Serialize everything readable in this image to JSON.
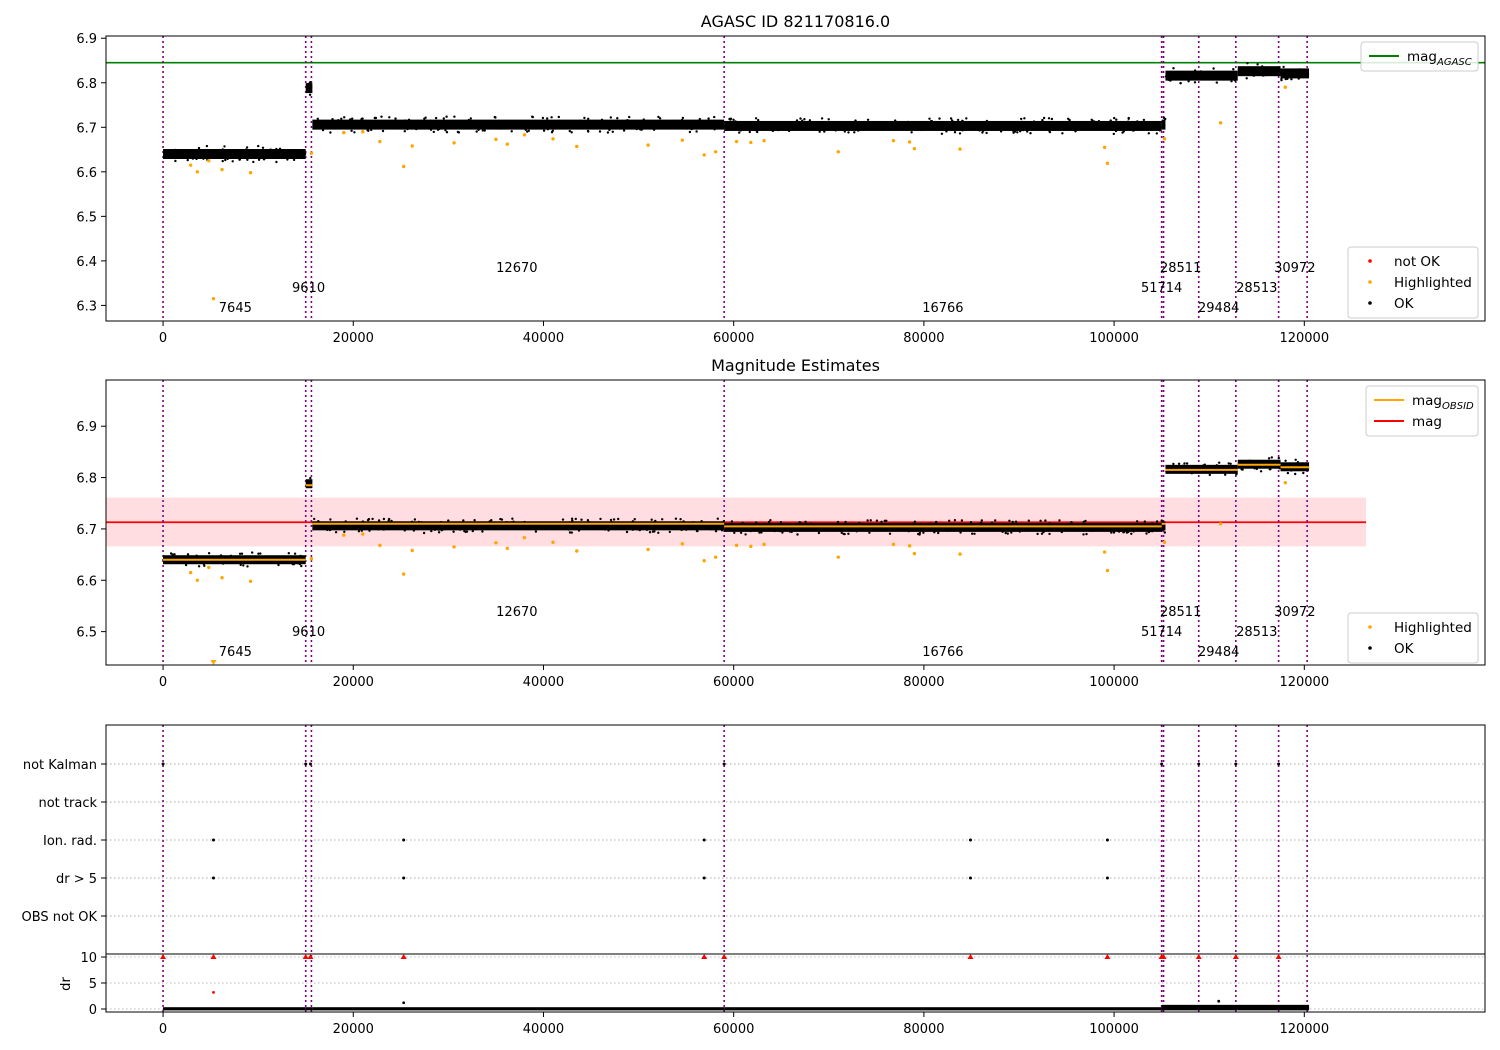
{
  "chart_data": [
    {
      "type": "scatter",
      "title": "AGASC ID 821170816.0",
      "xlim": [
        -6000,
        139000
      ],
      "ylim": [
        6.265,
        6.905
      ],
      "x_ticks": [
        0,
        20000,
        40000,
        60000,
        80000,
        100000,
        120000
      ],
      "y_ticks": [
        6.3,
        6.4,
        6.5,
        6.6,
        6.7,
        6.8,
        6.9
      ],
      "y_tick_labels": [
        "6.3",
        "6.4",
        "6.5",
        "6.6",
        "6.7",
        "6.8",
        "6.9"
      ],
      "grid": false,
      "reference_line": {
        "name": "mag_AGASC",
        "y": 6.845,
        "color": "#008000"
      },
      "legends": [
        {
          "placement": "upper right",
          "entries": [
            {
              "label": "mag",
              "sub": "AGASC",
              "kind": "line",
              "color": "#008000"
            }
          ]
        },
        {
          "placement": "lower right",
          "entries": [
            {
              "label": "not OK",
              "kind": "dot",
              "color": "#ff0000"
            },
            {
              "label": "Highlighted",
              "kind": "dot",
              "color": "#ffa500"
            },
            {
              "label": "OK",
              "kind": "dot",
              "color": "#000000"
            }
          ]
        }
      ]
    },
    {
      "type": "scatter",
      "title": "Magnitude Estimates",
      "xlim": [
        -6000,
        139000
      ],
      "ylim": [
        6.435,
        6.99
      ],
      "x_ticks": [
        0,
        20000,
        40000,
        60000,
        80000,
        100000,
        120000
      ],
      "y_ticks": [
        6.5,
        6.6,
        6.7,
        6.8,
        6.9
      ],
      "y_tick_labels": [
        "6.5",
        "6.6",
        "6.7",
        "6.8",
        "6.9"
      ],
      "grid": false,
      "mag_line": {
        "name": "mag",
        "y": 6.713,
        "color": "#ff0000",
        "x_end": 126500
      },
      "mag_band": {
        "y_low": 6.666,
        "y_high": 6.761,
        "color": "#ff000022"
      },
      "mag_obsid_segments": [
        {
          "x0": 0,
          "x1": 15000,
          "y": 6.64
        },
        {
          "x0": 15000,
          "x1": 15700,
          "y": 6.785
        },
        {
          "x0": 15700,
          "x1": 59000,
          "y": 6.71
        },
        {
          "x0": 59000,
          "x1": 105000,
          "y": 6.705
        },
        {
          "x0": 105000,
          "x1": 105400,
          "y": 6.71
        },
        {
          "x0": 105400,
          "x1": 113000,
          "y": 6.815
        },
        {
          "x0": 113000,
          "x1": 117500,
          "y": 6.825
        },
        {
          "x0": 117500,
          "x1": 120500,
          "y": 6.82
        }
      ],
      "legends": [
        {
          "placement": "upper right",
          "entries": [
            {
              "label": "mag",
              "sub": "OBSID",
              "kind": "line",
              "color": "#ffa500"
            },
            {
              "label": "mag",
              "kind": "line",
              "color": "#ff0000"
            }
          ]
        },
        {
          "placement": "lower right",
          "entries": [
            {
              "label": "Highlighted",
              "kind": "dot",
              "color": "#ffa500"
            },
            {
              "label": "OK",
              "kind": "dot",
              "color": "#000000"
            }
          ]
        }
      ]
    },
    {
      "type": "scatter",
      "title": "",
      "xlim": [
        -6000,
        139000
      ],
      "categories": [
        "not Kalman",
        "not track",
        "Ion. rad.",
        "dr > 5",
        "OBS not OK"
      ],
      "category_events": [
        {
          "category": "not Kalman",
          "x": [
            0,
            15000,
            15500,
            59000,
            105000,
            108900,
            112800,
            117300
          ]
        },
        {
          "category": "not track",
          "x": []
        },
        {
          "category": "Ion. rad.",
          "x": [
            5300,
            25300,
            56900,
            84900,
            99300
          ]
        },
        {
          "category": "dr > 5",
          "x": [
            5300,
            25300,
            56900,
            84900,
            99300
          ]
        },
        {
          "category": "OBS not OK",
          "x": []
        }
      ],
      "dr_panel": {
        "ylabel": "dr",
        "y_ticks": [
          0,
          5,
          10
        ],
        "ylim": [
          -0.5,
          10.5
        ],
        "clipped_points": {
          "y": 10,
          "color": "#ff0000",
          "x": [
            0,
            5300,
            15000,
            15500,
            25300,
            56900,
            59000,
            84900,
            99300,
            105000,
            105200,
            108900,
            112800,
            117300
          ]
        },
        "other_points": [
          {
            "x": 5300,
            "y": 3.2,
            "color": "#ff0000"
          },
          {
            "x": 25300,
            "y": 1.2,
            "color": "#000000"
          },
          {
            "x": 111000,
            "y": 1.5,
            "color": "#000000"
          }
        ]
      },
      "x_ticks": [
        0,
        20000,
        40000,
        60000,
        80000,
        100000,
        120000
      ]
    }
  ],
  "obsid_markers": [
    {
      "x": 0,
      "label": "7645",
      "label_x": 7600,
      "tier": 3
    },
    {
      "x": 15000,
      "label": "9610",
      "label_x": 15300,
      "tier": 2
    },
    {
      "x": 15600,
      "label": "12670",
      "label_x": 37200,
      "tier": 1
    },
    {
      "x": 59000,
      "label": "16766",
      "label_x": 82000,
      "tier": 3
    },
    {
      "x": 105000,
      "label": "51714",
      "label_x": 105000,
      "tier": 2
    },
    {
      "x": 105200,
      "label": "28511",
      "label_x": 107000,
      "tier": 1
    },
    {
      "x": 108900,
      "label": "29484",
      "label_x": 111000,
      "tier": 3
    },
    {
      "x": 112800,
      "label": "28513",
      "label_x": 115000,
      "tier": 2
    },
    {
      "x": 117300,
      "label": "30972",
      "label_x": 119000,
      "tier": 1
    },
    {
      "x": 120300,
      "label": "",
      "label_x": 120300,
      "tier": 0
    }
  ],
  "magnitude_segments": [
    {
      "x0": 0,
      "x1": 15000,
      "y": 6.64
    },
    {
      "x0": 15000,
      "x1": 15700,
      "y": 6.788
    },
    {
      "x0": 15700,
      "x1": 59000,
      "y": 6.706
    },
    {
      "x0": 59000,
      "x1": 105000,
      "y": 6.703
    },
    {
      "x0": 105000,
      "x1": 105400,
      "y": 6.706
    },
    {
      "x0": 105400,
      "x1": 113000,
      "y": 6.816
    },
    {
      "x0": 113000,
      "x1": 117500,
      "y": 6.826
    },
    {
      "x0": 117500,
      "x1": 120500,
      "y": 6.821
    }
  ],
  "highlighted_outliers": [
    {
      "x": 2900,
      "y": 6.615
    },
    {
      "x": 3600,
      "y": 6.6
    },
    {
      "x": 4800,
      "y": 6.625
    },
    {
      "x": 5300,
      "y": 6.315
    },
    {
      "x": 6200,
      "y": 6.605
    },
    {
      "x": 9200,
      "y": 6.598
    },
    {
      "x": 15600,
      "y": 6.642
    },
    {
      "x": 19000,
      "y": 6.688
    },
    {
      "x": 21000,
      "y": 6.69
    },
    {
      "x": 22800,
      "y": 6.668
    },
    {
      "x": 25300,
      "y": 6.612
    },
    {
      "x": 26200,
      "y": 6.658
    },
    {
      "x": 30600,
      "y": 6.665
    },
    {
      "x": 35000,
      "y": 6.673
    },
    {
      "x": 36200,
      "y": 6.662
    },
    {
      "x": 38000,
      "y": 6.683
    },
    {
      "x": 41000,
      "y": 6.674
    },
    {
      "x": 43500,
      "y": 6.657
    },
    {
      "x": 51000,
      "y": 6.66
    },
    {
      "x": 54600,
      "y": 6.671
    },
    {
      "x": 56900,
      "y": 6.638
    },
    {
      "x": 58100,
      "y": 6.645
    },
    {
      "x": 60300,
      "y": 6.668
    },
    {
      "x": 61800,
      "y": 6.666
    },
    {
      "x": 63200,
      "y": 6.67
    },
    {
      "x": 71000,
      "y": 6.645
    },
    {
      "x": 76800,
      "y": 6.67
    },
    {
      "x": 78500,
      "y": 6.667
    },
    {
      "x": 79000,
      "y": 6.652
    },
    {
      "x": 83800,
      "y": 6.651
    },
    {
      "x": 99000,
      "y": 6.655
    },
    {
      "x": 99300,
      "y": 6.619
    },
    {
      "x": 105300,
      "y": 6.674
    },
    {
      "x": 111200,
      "y": 6.71
    },
    {
      "x": 118000,
      "y": 6.79
    }
  ],
  "colors": {
    "ok": "#000000",
    "highlighted": "#ffa500",
    "not_ok": "#ff0000",
    "obsid_line": "#800080",
    "agasc": "#008000",
    "mag": "#ff0000",
    "mag_obsid": "#ffa500"
  }
}
